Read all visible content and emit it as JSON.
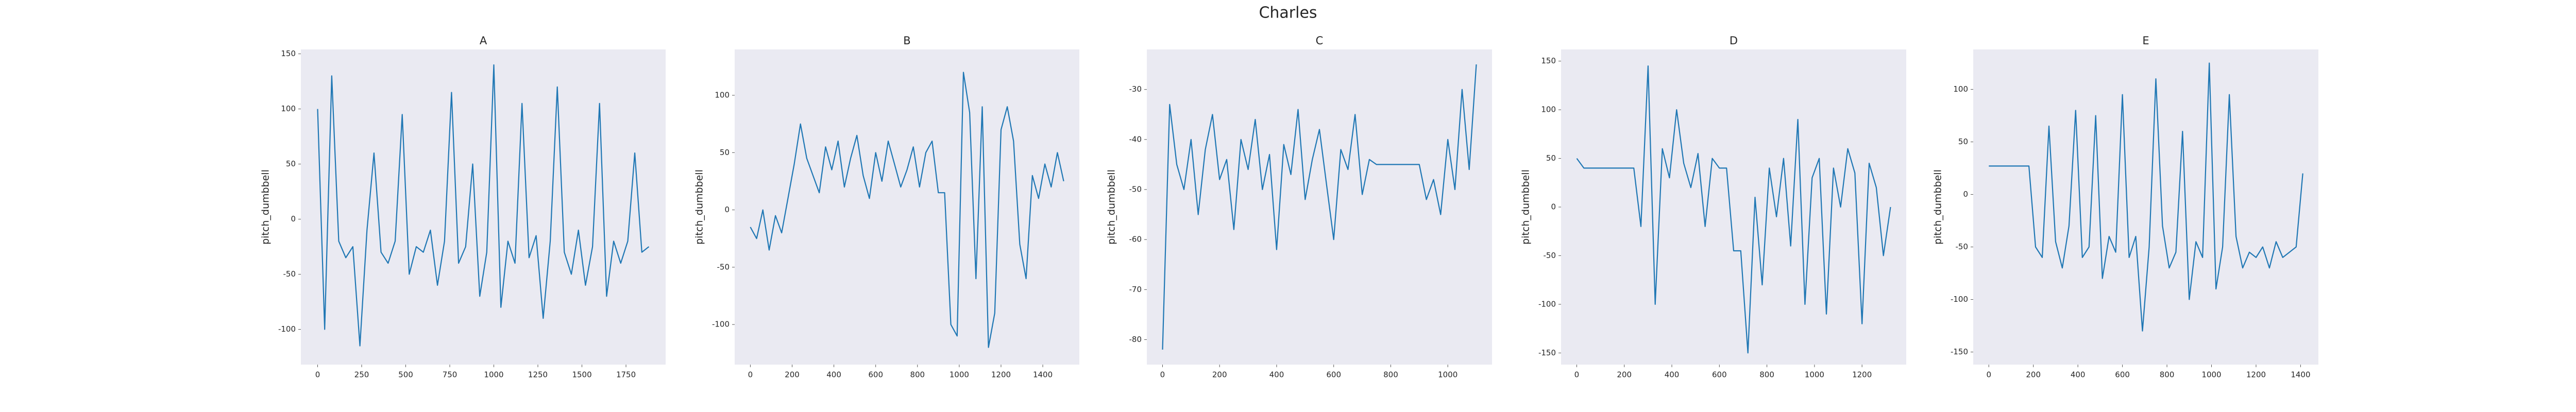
{
  "title": "Charles",
  "chart_data": [
    {
      "type": "line",
      "title": "A",
      "ylabel": "pitch_dumbbell",
      "color": "#1f77b4",
      "grid": false,
      "x": [
        0,
        40,
        80,
        120,
        160,
        200,
        240,
        280,
        320,
        360,
        400,
        440,
        480,
        520,
        560,
        600,
        640,
        680,
        720,
        760,
        800,
        840,
        880,
        920,
        960,
        1000,
        1040,
        1080,
        1120,
        1160,
        1200,
        1240,
        1280,
        1320,
        1360,
        1400,
        1440,
        1480,
        1520,
        1560,
        1600,
        1640,
        1680,
        1720,
        1760,
        1800,
        1840,
        1880
      ],
      "values": [
        100,
        -100,
        130,
        -20,
        -35,
        -25,
        -115,
        -10,
        60,
        -30,
        -40,
        -20,
        95,
        -50,
        -25,
        -30,
        -10,
        -60,
        -20,
        115,
        -40,
        -25,
        50,
        -70,
        -30,
        140,
        -80,
        -20,
        -40,
        105,
        -35,
        -15,
        -90,
        -20,
        120,
        -30,
        -50,
        -10,
        -60,
        -25,
        105,
        -70,
        -20,
        -40,
        -20,
        60,
        -30,
        -25
      ],
      "xlim": [
        -95,
        1975
      ],
      "xticks": [
        0,
        250,
        500,
        750,
        1000,
        1250,
        1500,
        1750
      ],
      "ylim": [
        -132,
        154
      ],
      "yticks": [
        -100,
        -50,
        0,
        50,
        100,
        150
      ]
    },
    {
      "type": "line",
      "title": "B",
      "ylabel": "pitch_dumbbell",
      "color": "#1f77b4",
      "grid": false,
      "x": [
        0,
        30,
        60,
        90,
        120,
        150,
        180,
        210,
        240,
        270,
        300,
        330,
        360,
        390,
        420,
        450,
        480,
        510,
        540,
        570,
        600,
        630,
        660,
        690,
        720,
        750,
        780,
        810,
        840,
        870,
        900,
        930,
        960,
        990,
        1020,
        1050,
        1080,
        1110,
        1140,
        1170,
        1200,
        1230,
        1260,
        1290,
        1320,
        1350,
        1380,
        1410,
        1440,
        1470,
        1500
      ],
      "values": [
        -15,
        -25,
        0,
        -35,
        -5,
        -20,
        10,
        40,
        75,
        45,
        30,
        15,
        55,
        35,
        60,
        20,
        45,
        65,
        30,
        10,
        50,
        25,
        60,
        40,
        20,
        35,
        55,
        20,
        50,
        60,
        15,
        15,
        -100,
        -110,
        120,
        85,
        -60,
        90,
        -120,
        -90,
        70,
        90,
        60,
        -30,
        -60,
        30,
        10,
        40,
        20,
        50,
        25
      ],
      "xlim": [
        -75,
        1575
      ],
      "xticks": [
        0,
        200,
        400,
        600,
        800,
        1000,
        1200,
        1400
      ],
      "ylim": [
        -135,
        140
      ],
      "yticks": [
        -100,
        -50,
        0,
        50,
        100
      ]
    },
    {
      "type": "line",
      "title": "C",
      "ylabel": "pitch_dumbbell",
      "color": "#1f77b4",
      "grid": false,
      "x": [
        0,
        25,
        50,
        75,
        100,
        125,
        150,
        175,
        200,
        225,
        250,
        275,
        300,
        325,
        350,
        375,
        400,
        425,
        450,
        475,
        500,
        525,
        550,
        575,
        600,
        625,
        650,
        675,
        700,
        725,
        750,
        775,
        800,
        825,
        850,
        875,
        900,
        925,
        950,
        975,
        1000,
        1025,
        1050,
        1075,
        1100
      ],
      "values": [
        -82,
        -33,
        -45,
        -50,
        -40,
        -55,
        -42,
        -35,
        -48,
        -44,
        -58,
        -40,
        -46,
        -36,
        -50,
        -43,
        -62,
        -41,
        -47,
        -34,
        -52,
        -44,
        -38,
        -49,
        -60,
        -42,
        -46,
        -35,
        -51,
        -44,
        -45,
        -45,
        -45,
        -45,
        -45,
        -45,
        -45,
        -52,
        -48,
        -55,
        -40,
        -50,
        -30,
        -46,
        -25
      ],
      "xlim": [
        -55,
        1155
      ],
      "xticks": [
        0,
        200,
        400,
        600,
        800,
        1000
      ],
      "ylim": [
        -85,
        -22
      ],
      "yticks": [
        -80,
        -70,
        -60,
        -50,
        -40,
        -30
      ]
    },
    {
      "type": "line",
      "title": "D",
      "ylabel": "pitch_dumbbell",
      "color": "#1f77b4",
      "grid": false,
      "x": [
        0,
        30,
        60,
        90,
        120,
        150,
        180,
        210,
        240,
        270,
        300,
        330,
        360,
        390,
        420,
        450,
        480,
        510,
        540,
        570,
        600,
        630,
        660,
        690,
        720,
        750,
        780,
        810,
        840,
        870,
        900,
        930,
        960,
        990,
        1020,
        1050,
        1080,
        1110,
        1140,
        1170,
        1200,
        1230,
        1260,
        1290,
        1320
      ],
      "values": [
        50,
        40,
        40,
        40,
        40,
        40,
        40,
        40,
        40,
        -20,
        145,
        -100,
        60,
        30,
        100,
        45,
        20,
        55,
        -20,
        50,
        40,
        40,
        -45,
        -45,
        -150,
        10,
        -80,
        40,
        -10,
        50,
        -40,
        90,
        -100,
        30,
        50,
        -110,
        40,
        0,
        60,
        35,
        -120,
        45,
        20,
        -50,
        0
      ],
      "xlim": [
        -66,
        1386
      ],
      "xticks": [
        0,
        200,
        400,
        600,
        800,
        1000,
        1200
      ],
      "ylim": [
        -162,
        162
      ],
      "yticks": [
        -150,
        -100,
        -50,
        0,
        50,
        100,
        150
      ]
    },
    {
      "type": "line",
      "title": "E",
      "ylabel": "pitch_dumbbell",
      "color": "#1f77b4",
      "grid": false,
      "x": [
        0,
        30,
        60,
        90,
        120,
        150,
        180,
        210,
        240,
        270,
        300,
        330,
        360,
        390,
        420,
        450,
        480,
        510,
        540,
        570,
        600,
        630,
        660,
        690,
        720,
        750,
        780,
        810,
        840,
        870,
        900,
        930,
        960,
        990,
        1020,
        1050,
        1080,
        1110,
        1140,
        1170,
        1200,
        1230,
        1260,
        1290,
        1320,
        1350,
        1380,
        1410
      ],
      "values": [
        27,
        27,
        27,
        27,
        27,
        27,
        27,
        -50,
        -60,
        65,
        -45,
        -70,
        -30,
        80,
        -60,
        -50,
        75,
        -80,
        -40,
        -55,
        95,
        -60,
        -40,
        -130,
        -50,
        110,
        -30,
        -70,
        -55,
        60,
        -100,
        -45,
        -60,
        125,
        -90,
        -50,
        95,
        -40,
        -70,
        -55,
        -60,
        -50,
        -70,
        -45,
        -60,
        -55,
        -50,
        20
      ],
      "xlim": [
        -70,
        1480
      ],
      "xticks": [
        0,
        200,
        400,
        600,
        800,
        1000,
        1200,
        1400
      ],
      "ylim": [
        -162,
        138
      ],
      "yticks": [
        -150,
        -100,
        -50,
        0,
        50,
        100
      ]
    }
  ]
}
